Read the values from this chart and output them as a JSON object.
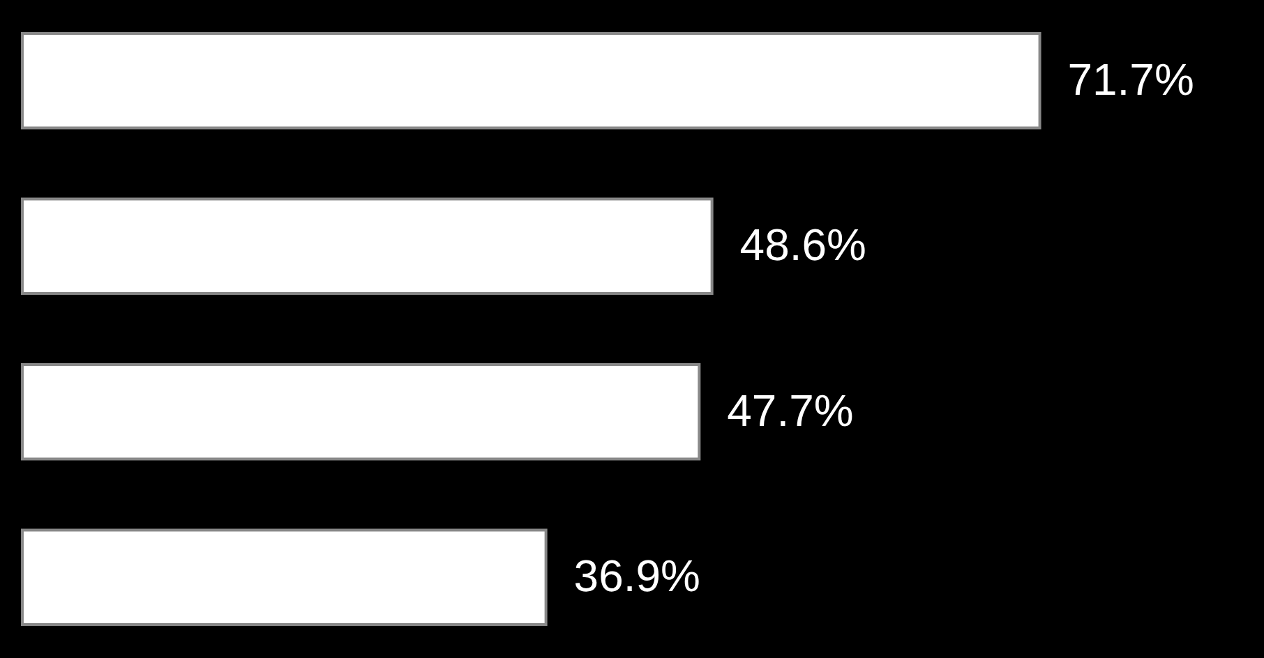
{
  "chart_data": {
    "type": "bar",
    "orientation": "horizontal",
    "categories": [
      null,
      null,
      null,
      null
    ],
    "values": [
      71.7,
      48.6,
      47.7,
      36.9
    ],
    "value_labels": [
      "71.7%",
      "48.6%",
      "47.7%",
      "36.9%"
    ],
    "color": "#ffffff",
    "xlim": [
      0,
      87.5
    ]
  }
}
